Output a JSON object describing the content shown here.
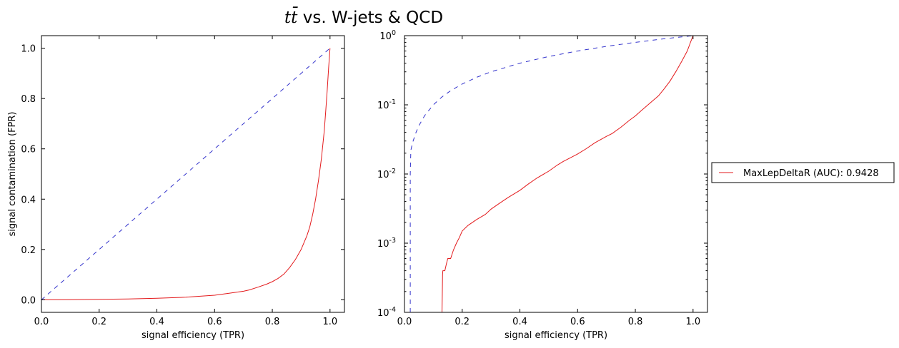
{
  "figure": {
    "title_math": "tt̄",
    "title_rest": " vs. W-jets & QCD"
  },
  "chart_data": [
    {
      "type": "line",
      "panel": "left",
      "xlabel": "signal efficiency (TPR)",
      "ylabel": "signal contamination  (FPR)",
      "xlim": [
        0,
        1.05
      ],
      "ylim": [
        -0.05,
        1.05
      ],
      "yscale": "linear",
      "xticks": [
        0.0,
        0.2,
        0.4,
        0.6,
        0.8,
        1.0
      ],
      "xtick_labels": [
        "0.0",
        "0.2",
        "0.4",
        "0.6",
        "0.8",
        "1.0"
      ],
      "yticks": [
        0.0,
        0.2,
        0.4,
        0.6,
        0.8,
        1.0
      ],
      "ytick_labels": [
        "0.0",
        "0.2",
        "0.4",
        "0.6",
        "0.8",
        "1.0"
      ],
      "grid": false,
      "series": [
        {
          "name": "MaxLepDeltaR (AUC): 0.9428",
          "color": "#e31a1c",
          "style": "solid",
          "x": [
            0.0,
            0.1,
            0.2,
            0.3,
            0.4,
            0.5,
            0.55,
            0.6,
            0.65,
            0.7,
            0.72,
            0.75,
            0.78,
            0.8,
            0.82,
            0.84,
            0.86,
            0.88,
            0.9,
            0.92,
            0.93,
            0.94,
            0.95,
            0.96,
            0.97,
            0.98,
            0.985,
            0.99,
            0.995,
            1.0
          ],
          "y": [
            0.0,
            0.0005,
            0.0015,
            0.003,
            0.006,
            0.01,
            0.014,
            0.018,
            0.026,
            0.034,
            0.039,
            0.05,
            0.062,
            0.072,
            0.085,
            0.102,
            0.128,
            0.16,
            0.2,
            0.255,
            0.29,
            0.34,
            0.4,
            0.475,
            0.56,
            0.67,
            0.75,
            0.83,
            0.92,
            1.0
          ]
        },
        {
          "name": "",
          "color": "#3333cc",
          "style": "dashed",
          "x": [
            0.0,
            1.0
          ],
          "y": [
            0.0,
            1.0
          ]
        }
      ]
    },
    {
      "type": "line",
      "panel": "right",
      "xlabel": "signal efficiency (TPR)",
      "ylabel": "",
      "xlim": [
        0,
        1.05
      ],
      "ylim": [
        0.0001,
        1
      ],
      "yscale": "log",
      "xticks": [
        0.0,
        0.2,
        0.4,
        0.6,
        0.8,
        1.0
      ],
      "xtick_labels": [
        "0.0",
        "0.2",
        "0.4",
        "0.6",
        "0.8",
        "1.0"
      ],
      "yticks": [
        0.0001,
        0.001,
        0.01,
        0.1,
        1
      ],
      "ytick_labels": [
        {
          "base": "10",
          "exp": "-4"
        },
        {
          "base": "10",
          "exp": "-3"
        },
        {
          "base": "10",
          "exp": "-2"
        },
        {
          "base": "10",
          "exp": "-1"
        },
        {
          "base": "10",
          "exp": "0"
        }
      ],
      "grid": false,
      "legend": {
        "placement": "outside-right",
        "entries": [
          "MaxLepDeltaR (AUC): 0.9428"
        ]
      },
      "series": [
        {
          "name": "MaxLepDeltaR (AUC): 0.9428",
          "color": "#e31a1c",
          "style": "solid",
          "x": [
            0.07,
            0.13,
            0.131,
            0.132,
            0.133,
            0.14,
            0.145,
            0.15,
            0.16,
            0.17,
            0.18,
            0.19,
            0.2,
            0.22,
            0.25,
            0.28,
            0.3,
            0.33,
            0.36,
            0.4,
            0.43,
            0.46,
            0.5,
            0.53,
            0.55,
            0.58,
            0.6,
            0.63,
            0.66,
            0.7,
            0.72,
            0.75,
            0.78,
            0.8,
            0.82,
            0.85,
            0.88,
            0.9,
            0.92,
            0.94,
            0.96,
            0.98,
            0.99,
            1.0
          ],
          "y": [
            0.0001,
            0.0001,
            0.00018,
            0.00035,
            0.0004,
            0.0004,
            0.0005,
            0.0006,
            0.0006,
            0.0008,
            0.001,
            0.0012,
            0.0015,
            0.0018,
            0.0022,
            0.0026,
            0.0031,
            0.0038,
            0.0046,
            0.0058,
            0.0072,
            0.0088,
            0.011,
            0.0135,
            0.0152,
            0.0176,
            0.0195,
            0.0232,
            0.0283,
            0.035,
            0.0385,
            0.0475,
            0.06,
            0.069,
            0.082,
            0.105,
            0.135,
            0.17,
            0.22,
            0.3,
            0.42,
            0.6,
            0.78,
            1.0
          ]
        },
        {
          "name": "",
          "color": "#3333cc",
          "style": "dashed",
          "x": [
            0.02,
            0.02,
            0.022,
            0.025,
            0.03,
            0.04,
            0.05,
            0.07,
            0.1,
            0.13,
            0.16,
            0.2,
            0.25,
            0.3,
            0.4,
            0.5,
            0.6,
            0.7,
            0.8,
            0.9,
            1.0
          ],
          "y": [
            0.0001,
            0.01,
            0.022,
            0.025,
            0.03,
            0.04,
            0.05,
            0.07,
            0.1,
            0.13,
            0.16,
            0.2,
            0.25,
            0.3,
            0.4,
            0.5,
            0.6,
            0.7,
            0.8,
            0.9,
            1.0
          ]
        }
      ]
    }
  ]
}
